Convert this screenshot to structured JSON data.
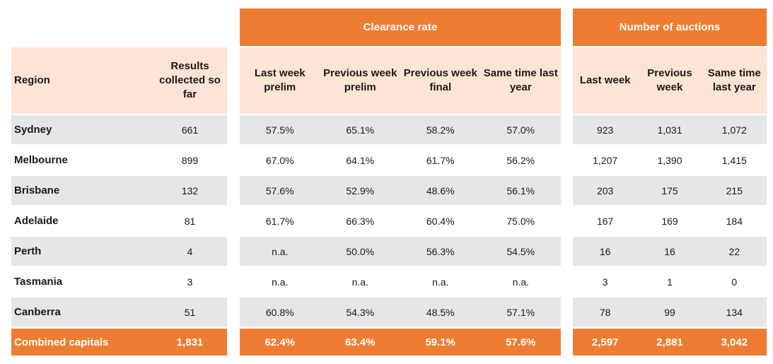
{
  "groups": {
    "clearance_rate": "Clearance rate",
    "number_of_auctions": "Number of auctions"
  },
  "headers": {
    "region": "Region",
    "results_collected": "Results collected so far",
    "cr_last_week_prelim": "Last week prelim",
    "cr_prev_week_prelim": "Previous week prelim",
    "cr_prev_week_final": "Previous week final",
    "cr_same_time_last_year": "Same time last year",
    "na_last_week": "Last week",
    "na_previous_week": "Previous week",
    "na_same_time_last_year": "Same time last year"
  },
  "rows": [
    {
      "region": "Sydney",
      "results": "661",
      "cr_last_prelim": "57.5%",
      "cr_prev_prelim": "65.1%",
      "cr_prev_final": "58.2%",
      "cr_last_year": "57.0%",
      "na_last": "923",
      "na_prev": "1,031",
      "na_last_year": "1,072"
    },
    {
      "region": "Melbourne",
      "results": "899",
      "cr_last_prelim": "67.0%",
      "cr_prev_prelim": "64.1%",
      "cr_prev_final": "61.7%",
      "cr_last_year": "56.2%",
      "na_last": "1,207",
      "na_prev": "1,390",
      "na_last_year": "1,415"
    },
    {
      "region": "Brisbane",
      "results": "132",
      "cr_last_prelim": "57.6%",
      "cr_prev_prelim": "52.9%",
      "cr_prev_final": "48.6%",
      "cr_last_year": "56.1%",
      "na_last": "203",
      "na_prev": "175",
      "na_last_year": "215"
    },
    {
      "region": "Adelaide",
      "results": "81",
      "cr_last_prelim": "61.7%",
      "cr_prev_prelim": "66.3%",
      "cr_prev_final": "60.4%",
      "cr_last_year": "75.0%",
      "na_last": "167",
      "na_prev": "169",
      "na_last_year": "184"
    },
    {
      "region": "Perth",
      "results": "4",
      "cr_last_prelim": "n.a.",
      "cr_prev_prelim": "50.0%",
      "cr_prev_final": "56.3%",
      "cr_last_year": "54.5%",
      "na_last": "16",
      "na_prev": "16",
      "na_last_year": "22"
    },
    {
      "region": "Tasmania",
      "results": "3",
      "cr_last_prelim": "n.a.",
      "cr_prev_prelim": "n.a.",
      "cr_prev_final": "n.a.",
      "cr_last_year": "n.a.",
      "na_last": "3",
      "na_prev": "1",
      "na_last_year": "0"
    },
    {
      "region": "Canberra",
      "results": "51",
      "cr_last_prelim": "60.8%",
      "cr_prev_prelim": "54.3%",
      "cr_prev_final": "48.5%",
      "cr_last_year": "57.1%",
      "na_last": "78",
      "na_prev": "99",
      "na_last_year": "134"
    }
  ],
  "total": {
    "region": "Combined capitals",
    "results": "1,831",
    "cr_last_prelim": "62.4%",
    "cr_prev_prelim": "63.4%",
    "cr_prev_final": "59.1%",
    "cr_last_year": "57.6%",
    "na_last": "2,597",
    "na_prev": "2,881",
    "na_last_year": "3,042"
  },
  "colors": {
    "accent_orange": "#ee7d31",
    "header_peach": "#fde4d4",
    "row_gray": "#e6e6e6"
  }
}
